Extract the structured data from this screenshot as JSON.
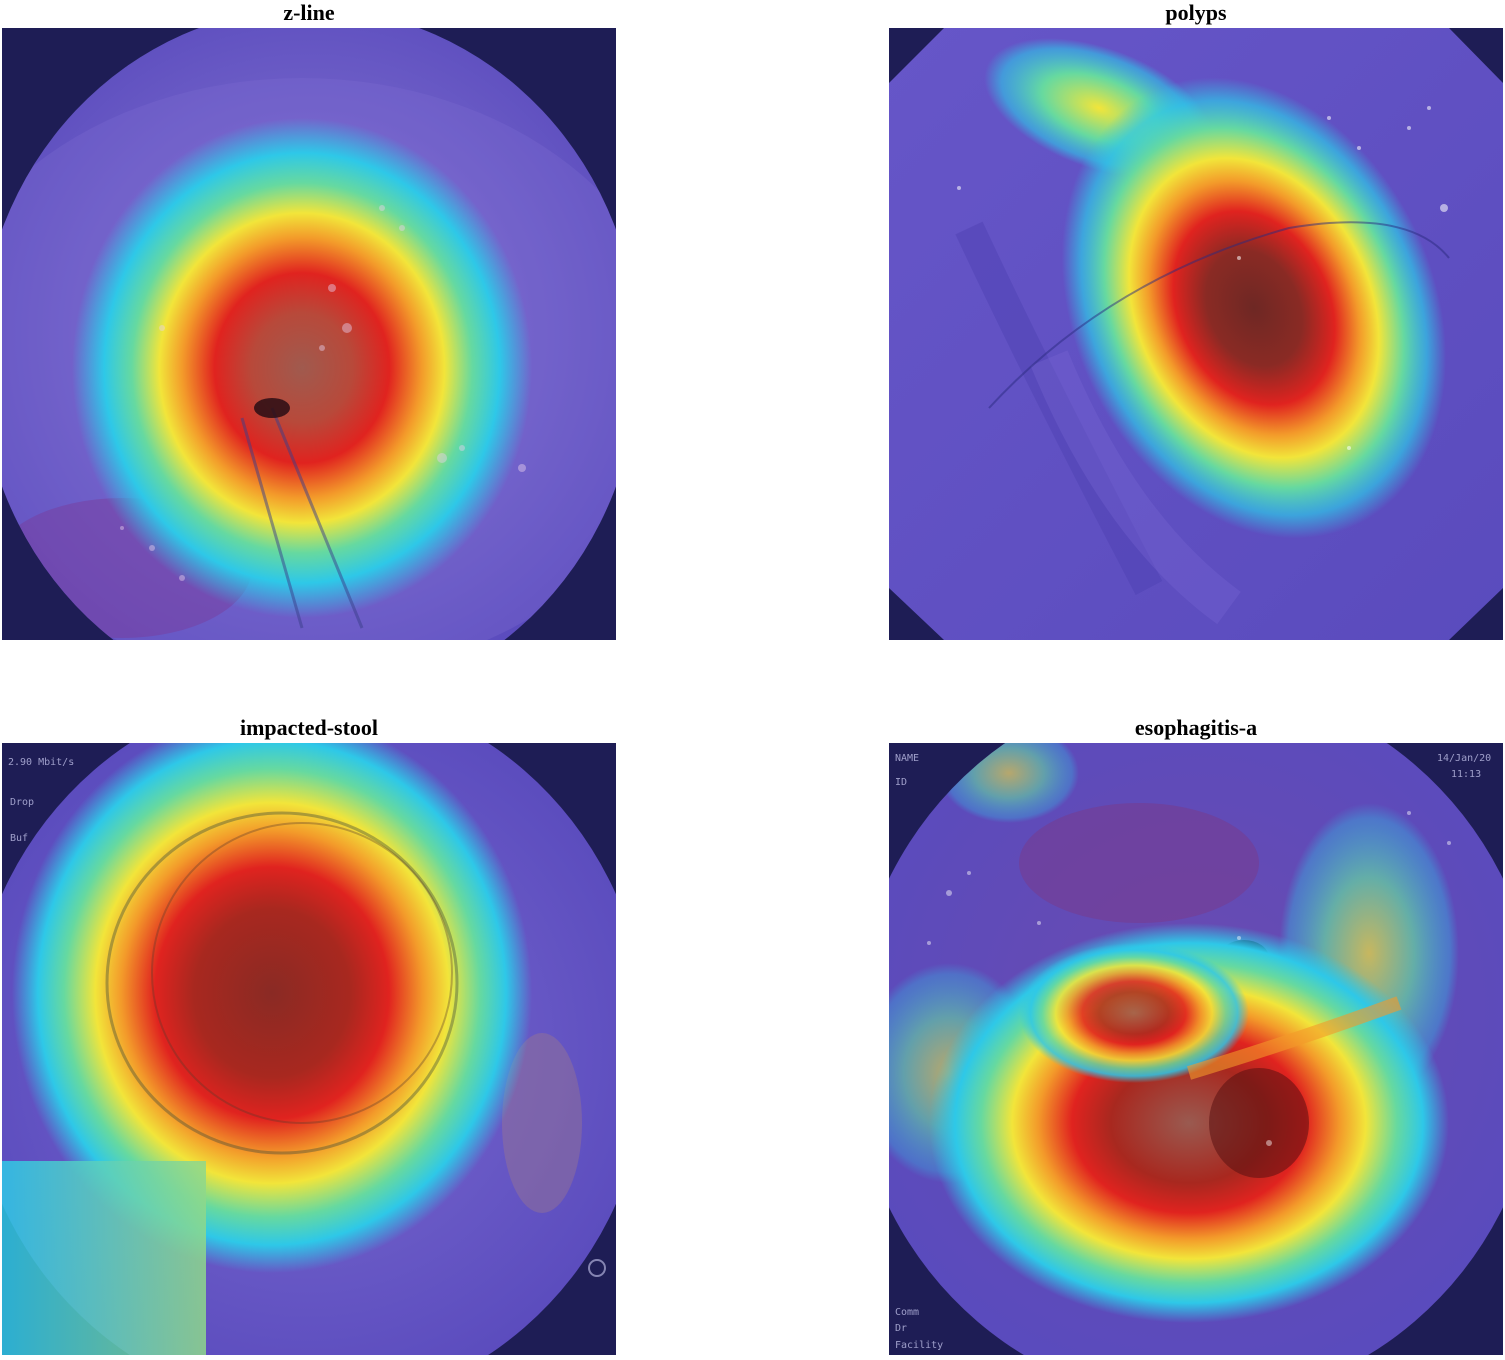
{
  "figure": {
    "panels": [
      {
        "id": "z-line",
        "title": "z-line",
        "content": "Grad-CAM heatmap overlay on endoscopic image"
      },
      {
        "id": "polyps",
        "title": "polyps",
        "content": "Grad-CAM heatmap overlay on endoscopic image"
      },
      {
        "id": "impacted-stool",
        "title": "impacted-stool",
        "content": "Grad-CAM heatmap overlay on endoscopic image"
      },
      {
        "id": "esophagitis-a",
        "title": "esophagitis-a",
        "content": "Grad-CAM heatmap overlay on endoscopic image"
      }
    ]
  },
  "colors": {
    "background": "#ffffff",
    "frame_dark": "#201f5c",
    "cold": "#5b4fc4",
    "cyan": "#2ec8e8",
    "yellow": "#f2e53a",
    "orange": "#f39a2a",
    "red": "#e0231f",
    "dark_red": "#8a2a24"
  },
  "osd": {
    "impacted_stool": [
      "2.90 Mbit/s",
      "Drop",
      "Buf"
    ],
    "esophagitis_a": [
      "NAME",
      "ID",
      "14/Jan/20",
      "11:13",
      "Comm",
      "Dr",
      "Facility"
    ]
  }
}
